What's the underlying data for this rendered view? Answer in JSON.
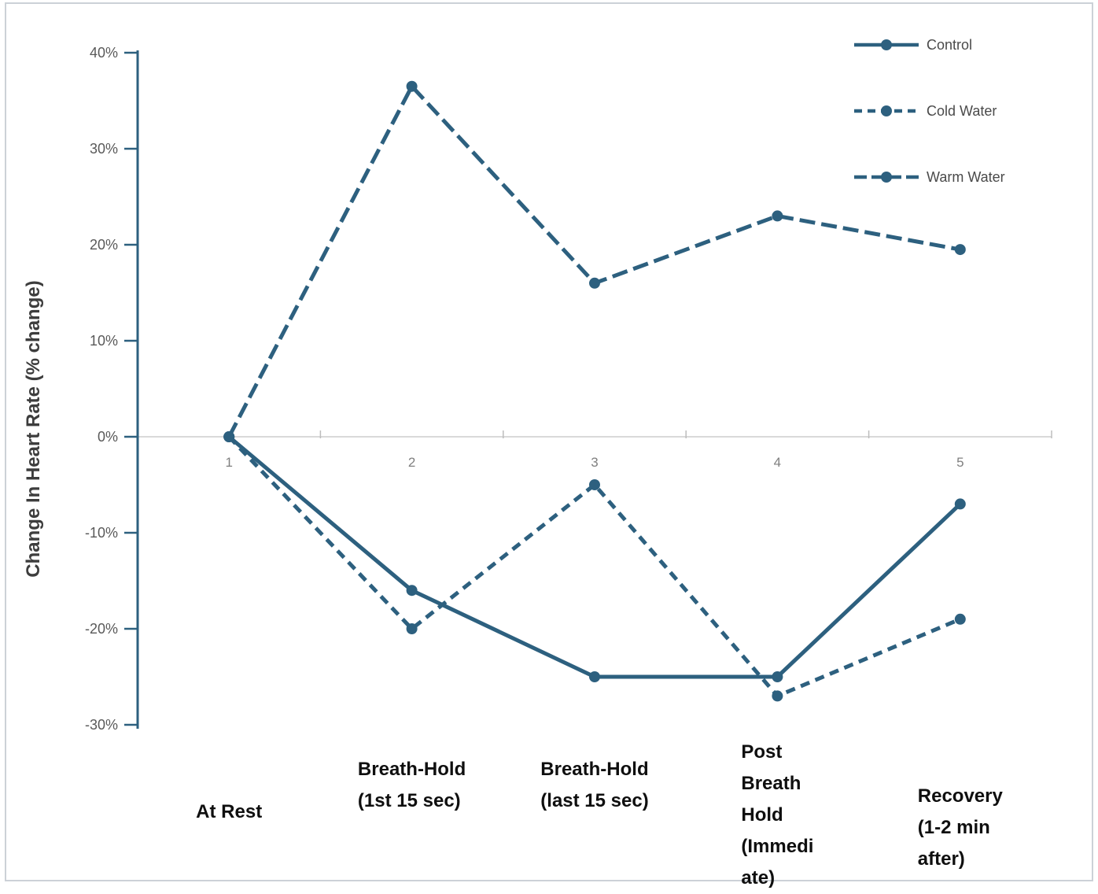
{
  "chart_data": {
    "type": "line",
    "title": "",
    "xlabel": "",
    "ylabel": "Change In Heart Rate (% change)",
    "ylim": [
      -30,
      40
    ],
    "ytick_step": 10,
    "ytick_labels": [
      "40%",
      "30%",
      "20%",
      "10%",
      "0%",
      "-10%",
      "-20%",
      "-30%"
    ],
    "x_index_labels": [
      "1",
      "2",
      "3",
      "4",
      "5"
    ],
    "grid": "zero-line-only",
    "legend_position": "top-right",
    "categories": [
      {
        "label": "At Rest",
        "lines": [
          "At Rest"
        ]
      },
      {
        "label": "Breath-Hold (1st 15 sec)",
        "lines": [
          "Breath-Hold",
          "(1st 15 sec)"
        ]
      },
      {
        "label": "Breath-Hold (last 15 sec)",
        "lines": [
          "Breath-Hold",
          "(last 15 sec)"
        ]
      },
      {
        "label": "Post Breath Hold (Immediate)",
        "lines": [
          "Post",
          "Breath",
          "Hold",
          "(Immedi",
          "ate)"
        ]
      },
      {
        "label": "Recovery (1-2 min after)",
        "lines": [
          "Recovery",
          "(1-2 min",
          "after)"
        ]
      }
    ],
    "series": [
      {
        "name": "Control",
        "line_style": "solid",
        "values": [
          0,
          -16,
          -25,
          -25,
          -7
        ]
      },
      {
        "name": "Cold Water",
        "line_style": "dash-short",
        "values": [
          0,
          -20,
          -5,
          -27,
          -19
        ]
      },
      {
        "name": "Warm Water",
        "line_style": "dash-long",
        "values": [
          0,
          36.5,
          16,
          23,
          19.5
        ]
      }
    ],
    "colors": {
      "line": "#2d607f",
      "zero_line": "#d9d9d9",
      "boundary_tick": "#bdbdbd",
      "ytick_label": "#595959",
      "x_index_label": "#7f7f7f",
      "category_label": "#0f0f0f",
      "y_axis_title": "#3d3d3d",
      "legend_text": "#4a4a4a",
      "frame_border": "#ccd1d7"
    }
  }
}
